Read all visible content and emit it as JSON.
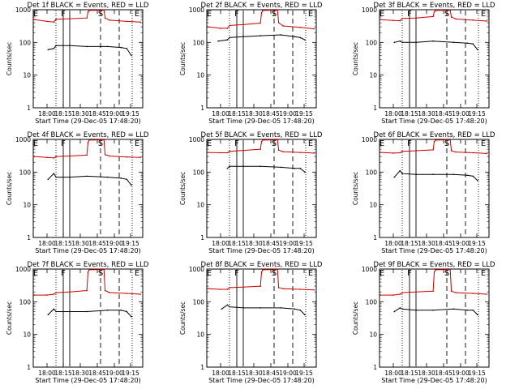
{
  "figure": {
    "ylabel": "Counts/sec",
    "xlabel": "Start Time (29-Dec-05 17:48:20)",
    "y_ticks": [
      "1",
      "10",
      "100",
      "1000"
    ],
    "x_ticks": [
      "18:00",
      "18:15",
      "18:30",
      "18:45",
      "19:00",
      "19:15"
    ],
    "marker_labels": [
      "E",
      "F",
      "S",
      "E"
    ],
    "colors": {
      "events": "#000000",
      "lld": "#cc0000"
    }
  },
  "chart_data": [
    {
      "type": "line",
      "title": "Det 1f BLACK = Events, RED = LLD",
      "xlabel": "Start Time (29-Dec-05 17:48:20)",
      "ylabel": "Counts/sec",
      "xlim": [
        "17:48",
        "19:24"
      ],
      "ylim": [
        1,
        1000
      ],
      "log_y": true,
      "series": [
        {
          "name": "LLD",
          "color": "#cc0000",
          "points": [
            [
              "17:49",
              500
            ],
            [
              "18:00",
              440
            ],
            [
              "18:06",
              420
            ],
            [
              "18:08",
              510
            ],
            [
              "18:20",
              530
            ],
            [
              "18:35",
              560
            ],
            [
              "18:36",
              850
            ],
            [
              "18:37",
              950
            ],
            [
              "18:50",
              970
            ],
            [
              "18:51",
              560
            ],
            [
              "18:55",
              480
            ],
            [
              "19:10",
              440
            ],
            [
              "19:22",
              420
            ]
          ]
        },
        {
          "name": "Events",
          "color": "#000000",
          "points": [
            [
              "18:01",
              60
            ],
            [
              "18:06",
              65
            ],
            [
              "18:08",
              80
            ],
            [
              "18:20",
              80
            ],
            [
              "18:35",
              75
            ],
            [
              "18:53",
              75
            ],
            [
              "19:05",
              70
            ],
            [
              "19:10",
              65
            ],
            [
              "19:14",
              40
            ]
          ]
        }
      ]
    },
    {
      "type": "line",
      "title": "Det 2f BLACK = Events, RED = LLD",
      "xlabel": "Start Time (29-Dec-05 17:48:20)",
      "ylabel": "Counts/sec",
      "xlim": [
        "17:48",
        "19:24"
      ],
      "ylim": [
        1,
        1000
      ],
      "log_y": true,
      "series": [
        {
          "name": "LLD",
          "color": "#cc0000",
          "points": [
            [
              "17:49",
              300
            ],
            [
              "18:00",
              270
            ],
            [
              "18:06",
              270
            ],
            [
              "18:08",
              330
            ],
            [
              "18:20",
              350
            ],
            [
              "18:35",
              390
            ],
            [
              "18:36",
              800
            ],
            [
              "18:37",
              950
            ],
            [
              "18:50",
              970
            ],
            [
              "18:51",
              400
            ],
            [
              "18:55",
              320
            ],
            [
              "19:10",
              290
            ],
            [
              "19:22",
              260
            ]
          ]
        },
        {
          "name": "Events",
          "color": "#000000",
          "points": [
            [
              "17:58",
              110
            ],
            [
              "18:06",
              120
            ],
            [
              "18:08",
              140
            ],
            [
              "18:20",
              150
            ],
            [
              "18:35",
              160
            ],
            [
              "18:53",
              170
            ],
            [
              "19:05",
              150
            ],
            [
              "19:10",
              140
            ],
            [
              "19:14",
              120
            ]
          ]
        }
      ]
    },
    {
      "type": "line",
      "title": "Det 3f BLACK = Events, RED = LLD",
      "xlabel": "Start Time (29-Dec-05 17:48:20)",
      "ylabel": "Counts/sec",
      "xlim": [
        "17:48",
        "19:24"
      ],
      "ylim": [
        1,
        1000
      ],
      "log_y": true,
      "series": [
        {
          "name": "LLD",
          "color": "#cc0000",
          "points": [
            [
              "17:49",
              500
            ],
            [
              "18:00",
              470
            ],
            [
              "18:06",
              460
            ],
            [
              "18:08",
              540
            ],
            [
              "18:20",
              560
            ],
            [
              "18:35",
              620
            ],
            [
              "18:36",
              850
            ],
            [
              "18:37",
              950
            ],
            [
              "18:50",
              970
            ],
            [
              "18:51",
              600
            ],
            [
              "18:55",
              520
            ],
            [
              "19:10",
              480
            ],
            [
              "19:22",
              450
            ]
          ]
        },
        {
          "name": "Events",
          "color": "#000000",
          "points": [
            [
              "18:01",
              100
            ],
            [
              "18:06",
              110
            ],
            [
              "18:08",
              100
            ],
            [
              "18:20",
              100
            ],
            [
              "18:35",
              110
            ],
            [
              "18:53",
              100
            ],
            [
              "19:05",
              95
            ],
            [
              "19:10",
              90
            ],
            [
              "19:14",
              60
            ]
          ]
        }
      ]
    },
    {
      "type": "line",
      "title": "Det 4f BLACK = Events, RED = LLD",
      "xlabel": "Start Time (29-Dec-05 17:48:20)",
      "ylabel": "Counts/sec",
      "xlim": [
        "17:48",
        "19:24"
      ],
      "ylim": [
        1,
        1000
      ],
      "log_y": true,
      "series": [
        {
          "name": "LLD",
          "color": "#cc0000",
          "points": [
            [
              "17:49",
              300
            ],
            [
              "18:00",
              280
            ],
            [
              "18:06",
              270
            ],
            [
              "18:08",
              300
            ],
            [
              "18:20",
              310
            ],
            [
              "18:35",
              330
            ],
            [
              "18:36",
              800
            ],
            [
              "18:37",
              950
            ],
            [
              "18:50",
              970
            ],
            [
              "18:51",
              340
            ],
            [
              "18:55",
              310
            ],
            [
              "19:10",
              290
            ],
            [
              "19:22",
              280
            ]
          ]
        },
        {
          "name": "Events",
          "color": "#000000",
          "points": [
            [
              "18:01",
              60
            ],
            [
              "18:06",
              90
            ],
            [
              "18:08",
              70
            ],
            [
              "18:20",
              70
            ],
            [
              "18:35",
              75
            ],
            [
              "18:53",
              70
            ],
            [
              "19:05",
              65
            ],
            [
              "19:10",
              60
            ],
            [
              "19:14",
              40
            ]
          ]
        }
      ]
    },
    {
      "type": "line",
      "title": "Det 5f BLACK = Events, RED = LLD",
      "xlabel": "Start Time (29-Dec-05 17:48:20)",
      "ylabel": "Counts/sec",
      "xlim": [
        "17:48",
        "19:24"
      ],
      "ylim": [
        1,
        1000
      ],
      "log_y": true,
      "series": [
        {
          "name": "LLD",
          "color": "#cc0000",
          "points": [
            [
              "17:49",
              400
            ],
            [
              "18:00",
              390
            ],
            [
              "18:06",
              390
            ],
            [
              "18:08",
              430
            ],
            [
              "18:20",
              460
            ],
            [
              "18:35",
              500
            ],
            [
              "18:36",
              850
            ],
            [
              "18:37",
              950
            ],
            [
              "18:50",
              970
            ],
            [
              "18:51",
              470
            ],
            [
              "18:55",
              420
            ],
            [
              "19:10",
              400
            ],
            [
              "19:22",
              380
            ]
          ]
        },
        {
          "name": "Events",
          "color": "#000000",
          "points": [
            [
              "18:06",
              130
            ],
            [
              "18:08",
              150
            ],
            [
              "18:20",
              150
            ],
            [
              "18:35",
              150
            ],
            [
              "18:53",
              140
            ],
            [
              "19:05",
              130
            ],
            [
              "19:10",
              130
            ],
            [
              "19:14",
              100
            ]
          ]
        }
      ]
    },
    {
      "type": "line",
      "title": "Det 6f BLACK = Events, RED = LLD",
      "xlabel": "Start Time (29-Dec-05 17:48:20)",
      "ylabel": "Counts/sec",
      "xlim": [
        "17:48",
        "19:24"
      ],
      "ylim": [
        1,
        1000
      ],
      "log_y": true,
      "series": [
        {
          "name": "LLD",
          "color": "#cc0000",
          "points": [
            [
              "17:49",
              400
            ],
            [
              "18:00",
              380
            ],
            [
              "18:06",
              390
            ],
            [
              "18:08",
              430
            ],
            [
              "18:20",
              450
            ],
            [
              "18:35",
              480
            ],
            [
              "18:36",
              850
            ],
            [
              "18:37",
              950
            ],
            [
              "18:50",
              970
            ],
            [
              "18:51",
              450
            ],
            [
              "18:55",
              410
            ],
            [
              "19:10",
              390
            ],
            [
              "19:22",
              370
            ]
          ]
        },
        {
          "name": "Events",
          "color": "#000000",
          "points": [
            [
              "18:01",
              70
            ],
            [
              "18:06",
              110
            ],
            [
              "18:08",
              90
            ],
            [
              "18:20",
              85
            ],
            [
              "18:35",
              85
            ],
            [
              "18:53",
              85
            ],
            [
              "19:05",
              80
            ],
            [
              "19:10",
              75
            ],
            [
              "19:14",
              55
            ]
          ]
        }
      ]
    },
    {
      "type": "line",
      "title": "Det 7f BLACK = Events, RED = LLD",
      "xlabel": "Start Time (29-Dec-05 17:48:20)",
      "ylabel": "Counts/sec",
      "xlim": [
        "17:48",
        "19:24"
      ],
      "ylim": [
        1,
        1000
      ],
      "log_y": true,
      "series": [
        {
          "name": "LLD",
          "color": "#cc0000",
          "points": [
            [
              "17:49",
              160
            ],
            [
              "18:00",
              160
            ],
            [
              "18:06",
              170
            ],
            [
              "18:08",
              190
            ],
            [
              "18:20",
              200
            ],
            [
              "18:35",
              220
            ],
            [
              "18:36",
              800
            ],
            [
              "18:37",
              950
            ],
            [
              "18:50",
              970
            ],
            [
              "18:51",
              220
            ],
            [
              "18:55",
              190
            ],
            [
              "19:10",
              180
            ],
            [
              "19:22",
              170
            ]
          ]
        },
        {
          "name": "Events",
          "color": "#000000",
          "points": [
            [
              "18:01",
              40
            ],
            [
              "18:06",
              60
            ],
            [
              "18:08",
              50
            ],
            [
              "18:20",
              50
            ],
            [
              "18:35",
              50
            ],
            [
              "18:53",
              55
            ],
            [
              "19:05",
              55
            ],
            [
              "19:10",
              50
            ],
            [
              "19:14",
              35
            ]
          ]
        }
      ]
    },
    {
      "type": "line",
      "title": "Det 8f BLACK = Events, RED = LLD",
      "xlabel": "Start Time (29-Dec-05 17:48:20)",
      "ylabel": "Counts/sec",
      "xlim": [
        "17:48",
        "19:24"
      ],
      "ylim": [
        1,
        1000
      ],
      "log_y": true,
      "series": [
        {
          "name": "LLD",
          "color": "#cc0000",
          "points": [
            [
              "17:49",
              250
            ],
            [
              "18:00",
              240
            ],
            [
              "18:06",
              240
            ],
            [
              "18:08",
              270
            ],
            [
              "18:20",
              280
            ],
            [
              "18:35",
              300
            ],
            [
              "18:36",
              800
            ],
            [
              "18:37",
              950
            ],
            [
              "18:50",
              970
            ],
            [
              "18:51",
              270
            ],
            [
              "18:55",
              250
            ],
            [
              "19:10",
              240
            ],
            [
              "19:22",
              230
            ]
          ]
        },
        {
          "name": "Events",
          "color": "#000000",
          "points": [
            [
              "18:01",
              60
            ],
            [
              "18:06",
              80
            ],
            [
              "18:08",
              70
            ],
            [
              "18:20",
              65
            ],
            [
              "18:35",
              65
            ],
            [
              "18:53",
              65
            ],
            [
              "19:05",
              60
            ],
            [
              "19:10",
              55
            ],
            [
              "19:14",
              40
            ]
          ]
        }
      ]
    },
    {
      "type": "line",
      "title": "Det 9f BLACK = Events, RED = LLD",
      "xlabel": "Start Time (29-Dec-05 17:48:20)",
      "ylabel": "Counts/sec",
      "xlim": [
        "17:48",
        "19:24"
      ],
      "ylim": [
        1,
        1000
      ],
      "log_y": true,
      "series": [
        {
          "name": "LLD",
          "color": "#cc0000",
          "points": [
            [
              "17:49",
              160
            ],
            [
              "18:00",
              160
            ],
            [
              "18:06",
              170
            ],
            [
              "18:08",
              190
            ],
            [
              "18:20",
              200
            ],
            [
              "18:35",
              210
            ],
            [
              "18:36",
              800
            ],
            [
              "18:37",
              950
            ],
            [
              "18:50",
              970
            ],
            [
              "18:51",
              210
            ],
            [
              "18:55",
              190
            ],
            [
              "19:10",
              180
            ],
            [
              "19:22",
              170
            ]
          ]
        },
        {
          "name": "Events",
          "color": "#000000",
          "points": [
            [
              "18:01",
              50
            ],
            [
              "18:06",
              65
            ],
            [
              "18:08",
              60
            ],
            [
              "18:20",
              55
            ],
            [
              "18:35",
              55
            ],
            [
              "18:53",
              60
            ],
            [
              "19:05",
              55
            ],
            [
              "19:10",
              55
            ],
            [
              "19:14",
              40
            ]
          ]
        }
      ]
    }
  ]
}
